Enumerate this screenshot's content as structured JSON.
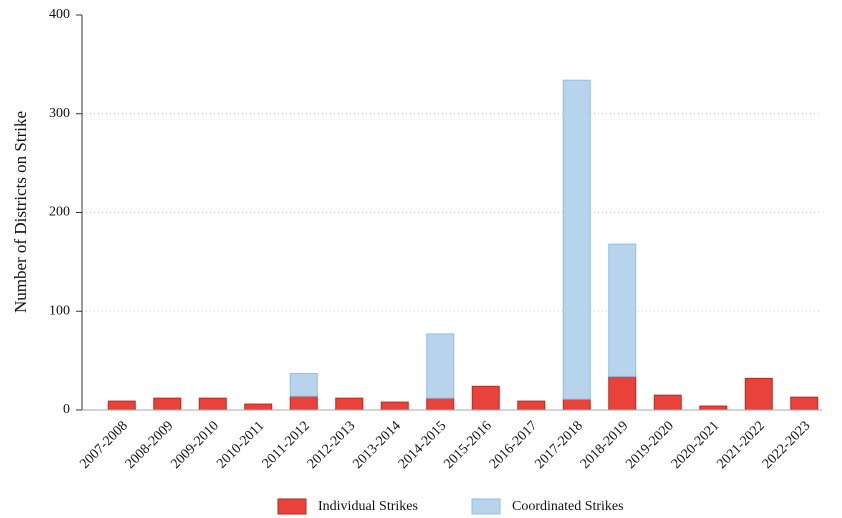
{
  "chart_data": {
    "type": "stacked_bar",
    "y_label": "Number of Districts on Strike",
    "categories": [
      "2007-2008",
      "2008-2009",
      "2009-2010",
      "2010-2011",
      "2011-2012",
      "2012-2013",
      "2013-2014",
      "2014-2015",
      "2015-2016",
      "2016-2017",
      "2017-2018",
      "2018-2019",
      "2019-2020",
      "2020-2021",
      "2021-2022",
      "2022-2023"
    ],
    "series": [
      {
        "name": "Individual Strikes",
        "color": "#e8423a",
        "values": [
          9,
          12,
          12,
          6,
          14,
          12,
          8,
          12,
          24,
          9,
          11,
          34,
          15,
          4,
          32,
          13
        ]
      },
      {
        "name": "Coordinated Strikes",
        "color": "#b8d4ec",
        "values": [
          0,
          0,
          0,
          0,
          23,
          0,
          0,
          65,
          0,
          0,
          323,
          134,
          0,
          0,
          0,
          0
        ]
      }
    ],
    "ylim": [
      0,
      400
    ],
    "yticks": [
      0,
      100,
      200,
      300,
      400
    ],
    "grid": true,
    "legend": "bottom"
  }
}
